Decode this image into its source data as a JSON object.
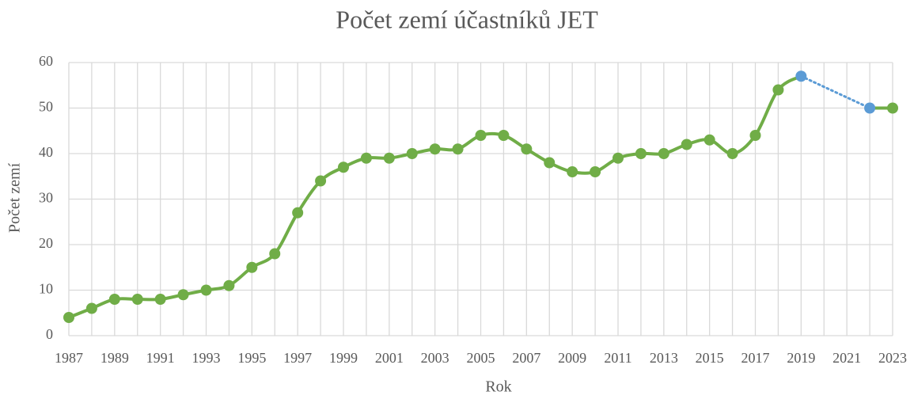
{
  "chart_data": {
    "type": "line",
    "title": "Počet zemí účastníků JET",
    "xlabel": "Rok",
    "ylabel": "Počet zemí",
    "x": [
      1987,
      1988,
      1989,
      1990,
      1991,
      1992,
      1993,
      1994,
      1995,
      1996,
      1997,
      1998,
      1999,
      2000,
      2001,
      2002,
      2003,
      2004,
      2005,
      2006,
      2007,
      2008,
      2009,
      2010,
      2011,
      2012,
      2013,
      2014,
      2015,
      2016,
      2017,
      2018,
      2019,
      2022,
      2023
    ],
    "values": [
      4,
      6,
      8,
      8,
      8,
      9,
      10,
      11,
      15,
      18,
      27,
      34,
      37,
      39,
      39,
      40,
      41,
      41,
      44,
      44,
      41,
      38,
      36,
      36,
      39,
      40,
      40,
      42,
      43,
      40,
      44,
      54,
      57,
      50,
      50
    ],
    "point_colors": [
      "#70ad47",
      "#70ad47",
      "#70ad47",
      "#70ad47",
      "#70ad47",
      "#70ad47",
      "#70ad47",
      "#70ad47",
      "#70ad47",
      "#70ad47",
      "#70ad47",
      "#70ad47",
      "#70ad47",
      "#70ad47",
      "#70ad47",
      "#70ad47",
      "#70ad47",
      "#70ad47",
      "#70ad47",
      "#70ad47",
      "#70ad47",
      "#70ad47",
      "#70ad47",
      "#70ad47",
      "#70ad47",
      "#70ad47",
      "#70ad47",
      "#70ad47",
      "#70ad47",
      "#70ad47",
      "#70ad47",
      "#70ad47",
      "#5b9bd5",
      "#5b9bd5",
      "#70ad47"
    ],
    "color": "#70ad47",
    "gap_color": "#5b9bd5",
    "xlim": [
      1987,
      2023
    ],
    "xticks": [
      1987,
      1989,
      1991,
      1993,
      1995,
      1997,
      1999,
      2001,
      2003,
      2005,
      2007,
      2009,
      2011,
      2013,
      2015,
      2017,
      2019,
      2021,
      2023
    ],
    "xgrid": [
      1987,
      1988,
      1989,
      1990,
      1991,
      1992,
      1993,
      1994,
      1995,
      1996,
      1997,
      1998,
      1999,
      2000,
      2001,
      2002,
      2003,
      2004,
      2005,
      2006,
      2007,
      2008,
      2009,
      2010,
      2011,
      2012,
      2013,
      2014,
      2015,
      2016,
      2017,
      2018,
      2019,
      2020,
      2021,
      2022,
      2023
    ],
    "ylim": [
      0,
      60
    ],
    "yticks": [
      0,
      10,
      20,
      30,
      40,
      50,
      60
    ],
    "grid": true
  }
}
